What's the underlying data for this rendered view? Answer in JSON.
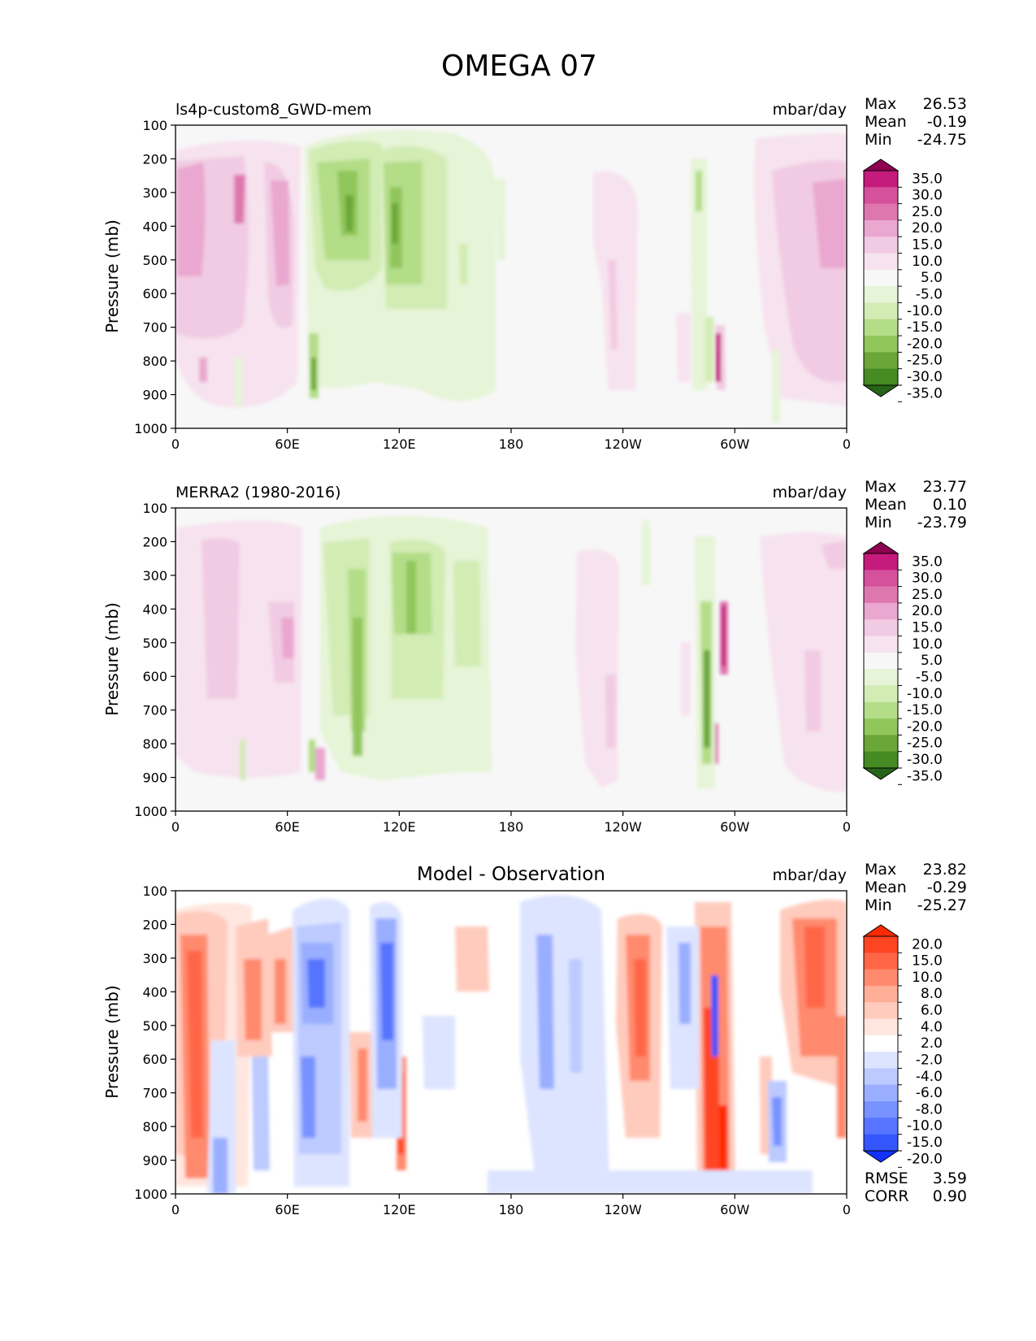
{
  "title": "OMEGA 07",
  "x_ticks": [
    "0",
    "60E",
    "120E",
    "180",
    "120W",
    "60W",
    "0"
  ],
  "y_ticks": [
    "100",
    "200",
    "300",
    "400",
    "500",
    "600",
    "700",
    "800",
    "900",
    "1000"
  ],
  "ylabel": "Pressure (mb)",
  "colors": {
    "background": "#ffffff",
    "panel_fill": "#f7f7f7"
  },
  "chart_data": [
    {
      "type": "heatmap",
      "name": "model",
      "left_label": "ls4p-custom8_GWD-mem",
      "center_label": "",
      "units": "mbar/day",
      "xlim": [
        0,
        360
      ],
      "ylim": [
        1000,
        100
      ],
      "stats": [
        {
          "label": "Max",
          "value": "26.53"
        },
        {
          "label": "Mean",
          "value": "-0.19"
        },
        {
          "label": "Min",
          "value": "-24.75"
        }
      ],
      "colorbar": {
        "levels": [
          "35.0",
          "30.0",
          "25.0",
          "20.0",
          "15.0",
          "10.0",
          "5.0",
          "-5.0",
          "-10.0",
          "-15.0",
          "-20.0",
          "-25.0",
          "-30.0",
          "-35.0"
        ],
        "colors": [
          "#8e0152",
          "#c51b7d",
          "#d6519c",
          "#de77ae",
          "#eaa7cf",
          "#f1cbe3",
          "#f7e3ef",
          "#f7f7f7",
          "#e6f4d7",
          "#d2ecb4",
          "#b4dd88",
          "#91c65b",
          "#6ba738",
          "#458a22",
          "#276419"
        ]
      }
    },
    {
      "type": "heatmap",
      "name": "obs",
      "left_label": "MERRA2 (1980-2016)",
      "center_label": "",
      "units": "mbar/day",
      "xlim": [
        0,
        360
      ],
      "ylim": [
        1000,
        100
      ],
      "stats": [
        {
          "label": "Max",
          "value": "23.77"
        },
        {
          "label": "Mean",
          "value": "0.10"
        },
        {
          "label": "Min",
          "value": "-23.79"
        }
      ],
      "colorbar": {
        "levels": [
          "35.0",
          "30.0",
          "25.0",
          "20.0",
          "15.0",
          "10.0",
          "5.0",
          "-5.0",
          "-10.0",
          "-15.0",
          "-20.0",
          "-25.0",
          "-30.0",
          "-35.0"
        ],
        "colors": [
          "#8e0152",
          "#c51b7d",
          "#d6519c",
          "#de77ae",
          "#eaa7cf",
          "#f1cbe3",
          "#f7e3ef",
          "#f7f7f7",
          "#e6f4d7",
          "#d2ecb4",
          "#b4dd88",
          "#91c65b",
          "#6ba738",
          "#458a22",
          "#276419"
        ]
      }
    },
    {
      "type": "heatmap",
      "name": "diff",
      "left_label": "",
      "center_label": "Model - Observation",
      "units": "mbar/day",
      "xlim": [
        0,
        360
      ],
      "ylim": [
        1000,
        100
      ],
      "stats": [
        {
          "label": "Max",
          "value": "23.82"
        },
        {
          "label": "Mean",
          "value": "-0.29"
        },
        {
          "label": "Min",
          "value": "-25.27"
        }
      ],
      "extra_stats": [
        {
          "label": "RMSE",
          "value": "3.59"
        },
        {
          "label": "CORR",
          "value": "0.90"
        }
      ],
      "colorbar": {
        "levels": [
          "20.0",
          "15.0",
          "10.0",
          "8.0",
          "6.0",
          "4.0",
          "2.0",
          "-2.0",
          "-4.0",
          "-6.0",
          "-8.0",
          "-10.0",
          "-15.0",
          "-20.0"
        ],
        "colors": [
          "#ff2a00",
          "#ff4422",
          "#ff6646",
          "#ff8a6e",
          "#ffae98",
          "#ffcbbd",
          "#ffe6df",
          "#ffffff",
          "#dde4ff",
          "#bccaff",
          "#9aaeff",
          "#7892ff",
          "#5674ff",
          "#3456ff",
          "#1230ff"
        ]
      }
    }
  ]
}
